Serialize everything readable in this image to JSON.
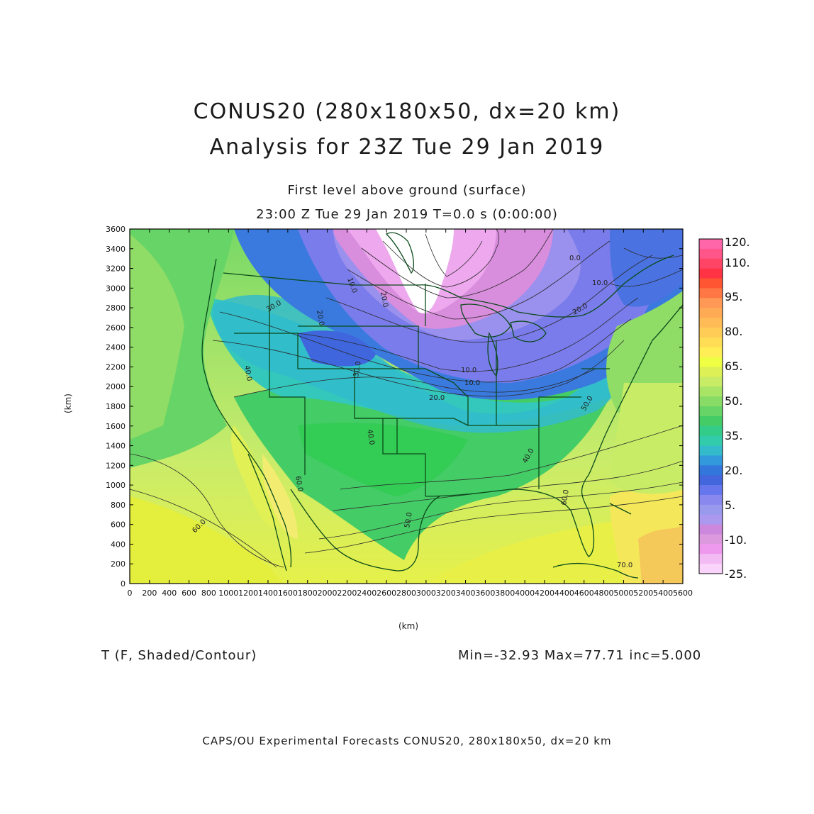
{
  "header": {
    "title_line1": "CONUS20 (280x180x50, dx=20 km)",
    "title_line2": "Analysis for 23Z Tue 29 Jan 2019",
    "subtitle_line1": "First level above ground (surface)",
    "subtitle_line2": "23:00 Z Tue 29 Jan 2019    T=0.0 s (0:00:00)"
  },
  "axes": {
    "x_unit": "(km)",
    "y_unit": "(km)",
    "x_range": [
      0,
      5600
    ],
    "y_range": [
      0,
      3600
    ],
    "x_ticks": [
      "0",
      "200",
      "400",
      "600",
      "800",
      "1000",
      "1200",
      "1400",
      "1600",
      "1800",
      "2000",
      "2200",
      "2400",
      "2600",
      "2800",
      "3000",
      "3200",
      "3400",
      "3600",
      "3800",
      "4000",
      "4200",
      "4400",
      "4600",
      "4800",
      "5000",
      "5200",
      "5400",
      "5600"
    ],
    "y_ticks": [
      "0",
      "200",
      "400",
      "600",
      "800",
      "1000",
      "1200",
      "1400",
      "1600",
      "1800",
      "2000",
      "2200",
      "2400",
      "2600",
      "2800",
      "3000",
      "3200",
      "3400",
      "3600"
    ]
  },
  "colorbar": {
    "labels": [
      "120.",
      "110.",
      "95.",
      "80.",
      "65.",
      "50.",
      "35.",
      "20.",
      "5.",
      "-10.",
      "-25."
    ],
    "colors": [
      "#ff66aa",
      "#ff5588",
      "#ff4466",
      "#ff3344",
      "#ff5533",
      "#ff7744",
      "#ff9955",
      "#ffaa55",
      "#ffbb55",
      "#ffcc55",
      "#ffdd55",
      "#ffee55",
      "#eeff44",
      "#ddf055",
      "#c8ec66",
      "#a8e466",
      "#88dc66",
      "#66d466",
      "#44cc66",
      "#33cc88",
      "#33ccaa",
      "#33bbcc",
      "#3399dd",
      "#3377dd",
      "#4466dd",
      "#6677ee",
      "#8888ee",
      "#9999ee",
      "#aa99ee",
      "#cc88dd",
      "#dd99dd",
      "#ee99ee",
      "#f3bbf3",
      "#fad4fa"
    ]
  },
  "contour_labels": [
    "10.0",
    "20.0",
    "30.0",
    "40.0",
    "50.0",
    "60.0",
    "70.0",
    "0.0"
  ],
  "field": {
    "label": "T (F, Shaded/Contour)",
    "stats": "Min=-32.93 Max=77.71 inc=5.000"
  },
  "footer": "CAPS/OU Experimental Forecasts  CONUS20, 280x180x50, dx=20 km"
}
